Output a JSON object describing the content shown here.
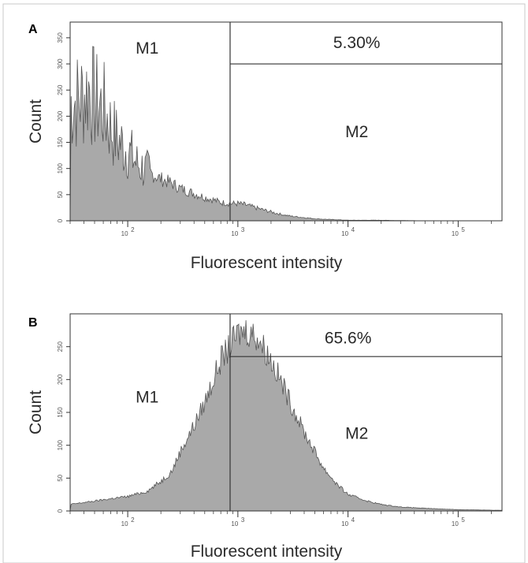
{
  "chart_data": [
    {
      "type": "area",
      "panel_label": "A",
      "xlabel": "Fluorescent intensity",
      "ylabel": "Count",
      "x_scale": "log",
      "xlim": [
        30,
        250000
      ],
      "ylim": [
        0,
        380
      ],
      "x_ticks": [
        {
          "value": 100,
          "base": "10",
          "exp": "2"
        },
        {
          "value": 1000,
          "base": "10",
          "exp": "3"
        },
        {
          "value": 10000,
          "base": "10",
          "exp": "4"
        },
        {
          "value": 100000,
          "base": "10",
          "exp": "5"
        }
      ],
      "y_ticks": [
        0,
        50,
        100,
        150,
        200,
        250,
        300,
        350
      ],
      "gate_x": 850,
      "gate_y": 300,
      "gates": [
        {
          "name": "M1",
          "label_x": 150,
          "label_y": 320
        },
        {
          "name": "M2",
          "label_x": 12000,
          "label_y": 160
        }
      ],
      "percent_label": {
        "text": "5.30%",
        "x": 12000,
        "y": 330
      },
      "histogram": {
        "x": [
          30,
          35,
          40,
          45,
          50,
          60,
          70,
          80,
          100,
          120,
          150,
          200,
          250,
          300,
          400,
          500,
          600,
          700,
          850,
          1000,
          1200,
          1500,
          2000,
          2500,
          3000,
          4000,
          5000,
          6000,
          8000,
          10000,
          20000,
          50000,
          100000,
          250000
        ],
        "y": [
          225,
          230,
          240,
          255,
          230,
          215,
          180,
          155,
          135,
          110,
          95,
          80,
          72,
          62,
          52,
          45,
          40,
          35,
          33,
          33,
          30,
          24,
          17,
          12,
          9,
          6,
          4,
          3,
          2,
          1,
          1,
          0,
          0,
          0
        ]
      }
    },
    {
      "type": "area",
      "panel_label": "B",
      "xlabel": "Fluorescent intensity",
      "ylabel": "Count",
      "x_scale": "log",
      "xlim": [
        30,
        250000
      ],
      "ylim": [
        0,
        300
      ],
      "x_ticks": [
        {
          "value": 100,
          "base": "10",
          "exp": "2"
        },
        {
          "value": 1000,
          "base": "10",
          "exp": "3"
        },
        {
          "value": 10000,
          "base": "10",
          "exp": "4"
        },
        {
          "value": 100000,
          "base": "10",
          "exp": "5"
        }
      ],
      "y_ticks": [
        0,
        50,
        100,
        150,
        200,
        250
      ],
      "gate_x": 850,
      "gate_y": 235,
      "gates": [
        {
          "name": "M1",
          "label_x": 150,
          "label_y": 165
        },
        {
          "name": "M2",
          "label_x": 12000,
          "label_y": 110
        }
      ],
      "percent_label": {
        "text": "65.6%",
        "x": 10000,
        "y": 255
      },
      "histogram": {
        "x": [
          30,
          50,
          80,
          100,
          150,
          200,
          250,
          300,
          400,
          500,
          600,
          700,
          850,
          1000,
          1200,
          1500,
          2000,
          2500,
          3000,
          4000,
          5000,
          6000,
          8000,
          10000,
          15000,
          20000,
          30000,
          50000,
          100000,
          250000
        ],
        "y": [
          10,
          15,
          20,
          22,
          30,
          45,
          60,
          90,
          130,
          165,
          200,
          230,
          250,
          270,
          275,
          265,
          230,
          195,
          165,
          120,
          90,
          65,
          40,
          25,
          15,
          10,
          6,
          4,
          2,
          1
        ]
      }
    }
  ]
}
